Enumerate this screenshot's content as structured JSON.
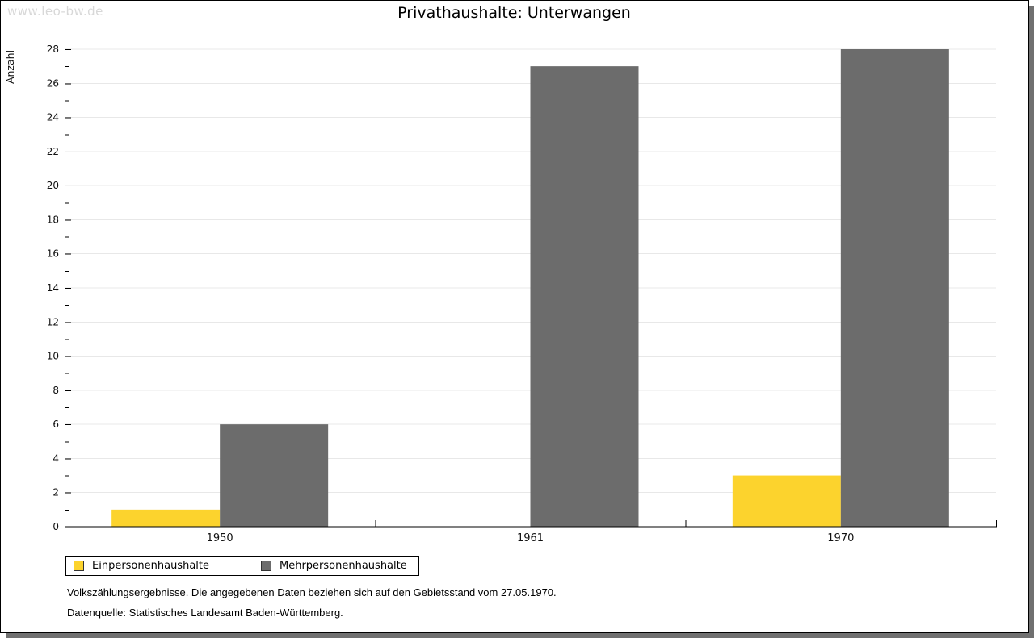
{
  "watermark": "www.leo-bw.de",
  "title": "Privathaushalte: Unterwangen",
  "chart_data": {
    "type": "bar",
    "title": "Privathaushalte: Unterwangen",
    "categories": [
      "1950",
      "1961",
      "1970"
    ],
    "series": [
      {
        "name": "Einpersonenhaushalte",
        "color": "#FCD32D",
        "values": [
          1,
          0,
          3
        ]
      },
      {
        "name": "Mehrpersonenhaushalte",
        "color": "#6C6C6C",
        "values": [
          6,
          27,
          28
        ]
      }
    ],
    "xlabel": "",
    "ylabel": "Anzahl",
    "ylim": [
      0,
      28
    ],
    "ytick_step": 2,
    "minor_tick_step": 1,
    "grid": true,
    "gridline_color": "#e8e8e8",
    "axis_color": "#000000",
    "legend_position": "bottom-left"
  },
  "footer": {
    "line1": "Volkszählungsergebnisse. Die angegebenen Daten beziehen sich auf den Gebietsstand vom 27.05.1970.",
    "line2": "Datenquelle: Statistisches Landesamt Baden-Württemberg."
  }
}
